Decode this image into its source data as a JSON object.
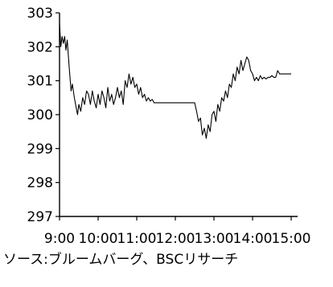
{
  "chart_data": {
    "type": "line",
    "title": "",
    "xlabel": "",
    "ylabel": "",
    "ylim": [
      297,
      303
    ],
    "y_ticks": [
      297,
      298,
      299,
      300,
      301,
      302,
      303
    ],
    "x_ticks": [
      "9:00",
      "10:00",
      "11:00",
      "12:00",
      "13:00",
      "14:00",
      "15:00"
    ],
    "xlim": [
      "9:00",
      "15:00"
    ],
    "grid": false,
    "legend": "none",
    "line_color": "#000000",
    "series": [
      {
        "x": [
          "9:00",
          "9:02",
          "9:04",
          "9:06",
          "9:08",
          "9:10",
          "9:12",
          "9:15",
          "9:18",
          "9:20",
          "9:23",
          "9:26",
          "9:28",
          "9:30",
          "9:33",
          "9:36",
          "9:39",
          "9:42",
          "9:45",
          "9:48",
          "9:51",
          "9:54",
          "9:57",
          "10:00",
          "10:03",
          "10:06",
          "10:09",
          "10:12",
          "10:15",
          "10:18",
          "10:21",
          "10:24",
          "10:27",
          "10:30",
          "10:33",
          "10:36",
          "10:39",
          "10:42",
          "10:45",
          "10:48",
          "10:51",
          "10:54",
          "10:57",
          "11:00",
          "11:03",
          "11:06",
          "11:09",
          "11:12",
          "11:15",
          "11:18",
          "11:21",
          "11:24",
          "11:27",
          "11:30",
          "12:30",
          "12:33",
          "12:36",
          "12:39",
          "12:42",
          "12:45",
          "12:48",
          "12:51",
          "12:54",
          "12:57",
          "13:00",
          "13:03",
          "13:06",
          "13:09",
          "13:12",
          "13:15",
          "13:18",
          "13:21",
          "13:24",
          "13:27",
          "13:30",
          "13:33",
          "13:36",
          "13:39",
          "13:42",
          "13:45",
          "13:48",
          "13:51",
          "13:54",
          "13:57",
          "14:00",
          "14:03",
          "14:06",
          "14:09",
          "14:12",
          "14:15",
          "14:18",
          "14:21",
          "14:24",
          "14:27",
          "14:30",
          "14:33",
          "14:36",
          "14:39",
          "14:42",
          "14:45",
          "14:48",
          "14:51",
          "14:54",
          "14:57",
          "15:00"
        ],
        "values": [
          302.7,
          302.0,
          302.3,
          302.1,
          302.3,
          301.9,
          302.2,
          301.4,
          300.7,
          300.9,
          300.5,
          300.2,
          300.0,
          300.3,
          300.1,
          300.5,
          300.3,
          300.7,
          300.6,
          300.3,
          300.7,
          300.4,
          300.2,
          300.6,
          300.3,
          300.7,
          300.5,
          300.2,
          300.8,
          300.4,
          300.6,
          300.3,
          300.5,
          300.8,
          300.5,
          300.7,
          300.3,
          301.0,
          300.8,
          301.2,
          300.9,
          301.1,
          300.8,
          300.9,
          300.6,
          300.8,
          300.5,
          300.6,
          300.4,
          300.5,
          300.4,
          300.45,
          300.35,
          300.35,
          300.35,
          300.1,
          299.8,
          299.9,
          299.4,
          299.6,
          299.3,
          299.7,
          299.5,
          300.0,
          300.1,
          299.8,
          300.3,
          300.1,
          300.5,
          300.4,
          300.7,
          300.5,
          300.9,
          300.8,
          301.2,
          301.0,
          301.4,
          301.2,
          301.6,
          301.3,
          301.5,
          301.7,
          301.6,
          301.3,
          301.2,
          301.0,
          301.1,
          301.0,
          301.15,
          301.05,
          301.1,
          301.05,
          301.1,
          301.1,
          301.15,
          301.1,
          301.1,
          301.3,
          301.2,
          301.2,
          301.2,
          301.2,
          301.2,
          301.2,
          301.2
        ]
      }
    ]
  },
  "source_note": "ソース:ブルームバーグ、BSCリサーチ"
}
